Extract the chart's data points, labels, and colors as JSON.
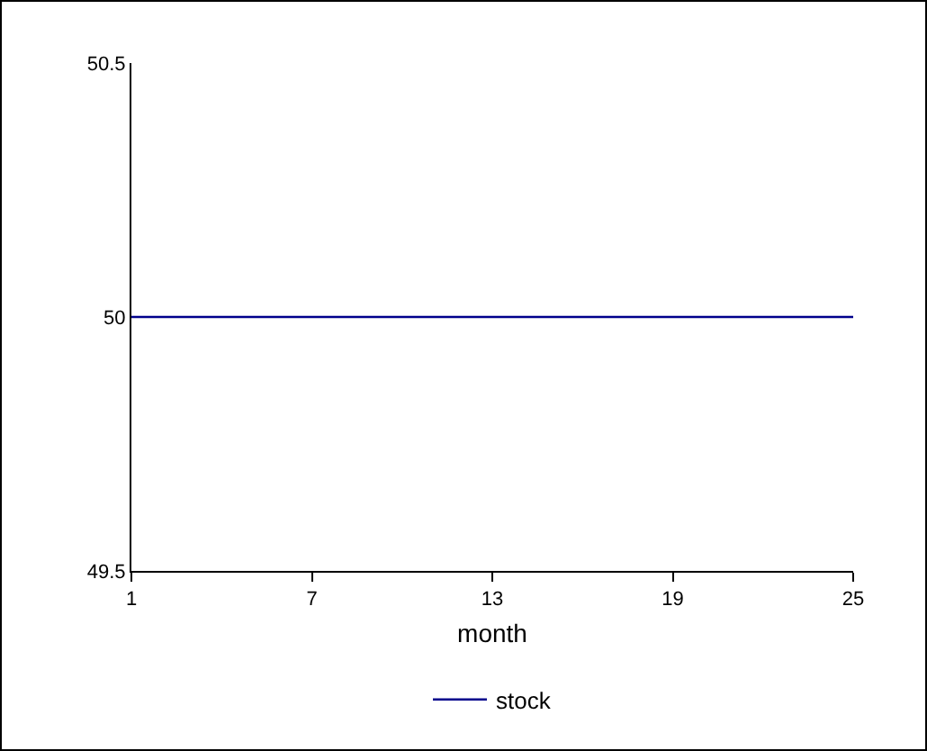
{
  "chart_data": {
    "type": "line",
    "xlabel": "month",
    "x": [
      1,
      25
    ],
    "series": [
      {
        "name": "stock",
        "color": "#00008b",
        "values": [
          50,
          50
        ]
      }
    ],
    "xlim": [
      1,
      25
    ],
    "xticks": [
      1,
      7,
      13,
      19,
      25
    ],
    "ylim": [
      49.5,
      50.5
    ],
    "yticks": [
      49.5,
      50,
      50.5
    ],
    "grid": false,
    "legend": "bottom",
    "marker": "none",
    "line_style": "solid"
  }
}
